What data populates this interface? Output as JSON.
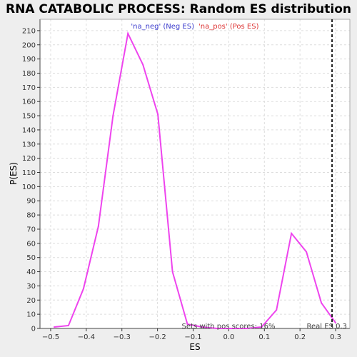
{
  "chart_data": {
    "type": "line",
    "title": "RNA CATABOLIC PROCESS: Random ES distribution",
    "xlabel": "ES",
    "ylabel": "P(ES)",
    "xlim": [
      -0.53,
      0.34
    ],
    "ylim": [
      0,
      218
    ],
    "x_ticks": [
      -0.5,
      -0.4,
      -0.3,
      -0.2,
      -0.1,
      0.0,
      0.1,
      0.2,
      0.3
    ],
    "x_tick_labels": [
      "−0.5",
      "−0.4",
      "−0.3",
      "−0.2",
      "−0.1",
      "0.0",
      "0.1",
      "0.2",
      "0.3"
    ],
    "y_ticks": [
      0,
      10,
      20,
      30,
      40,
      50,
      60,
      70,
      80,
      90,
      100,
      110,
      120,
      130,
      140,
      150,
      160,
      170,
      180,
      190,
      200,
      210
    ],
    "grid": true,
    "legend": {
      "placement": "top-center",
      "neg_label": "'na_neg' (Neg ES)",
      "pos_label": "'na_pos' (Pos ES)"
    },
    "series": [
      {
        "color": "#ee44ee",
        "x": [
          -0.49,
          -0.45,
          -0.408,
          -0.366,
          -0.325,
          -0.283,
          -0.241,
          -0.199,
          -0.158,
          -0.116,
          -0.075,
          -0.033,
          0.009,
          0.05,
          0.092,
          0.134,
          0.176,
          0.218,
          0.26,
          0.3
        ],
        "y": [
          1,
          2,
          28,
          72,
          150,
          208,
          186,
          151,
          40,
          3,
          1,
          0,
          0,
          0,
          1,
          13,
          67,
          54,
          18,
          4
        ]
      }
    ],
    "real_es": 0.29,
    "real_es_label": "Real ES 0.3",
    "pos_scores_label": "Sets with pos scores: 16%"
  }
}
